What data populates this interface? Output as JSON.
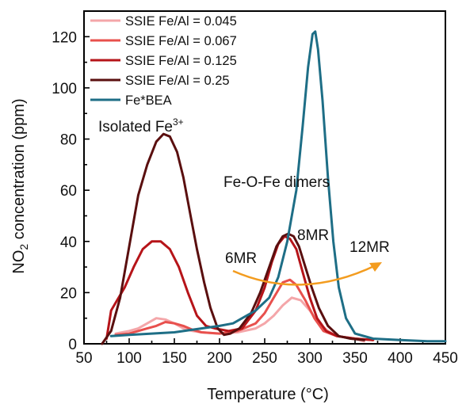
{
  "chart_data": {
    "type": "line",
    "title": "",
    "xlabel": "Temperature (°C)",
    "ylabel_main": "NO",
    "ylabel_sub": "2",
    "ylabel_rest": " concentration (ppm)",
    "xlim": [
      50,
      450
    ],
    "ylim": [
      0,
      130
    ],
    "x_ticks": [
      50,
      100,
      150,
      200,
      250,
      300,
      350,
      400,
      450
    ],
    "y_ticks": [
      0,
      20,
      40,
      60,
      80,
      100,
      120
    ],
    "grid": false,
    "legend_position": "top-left",
    "series": [
      {
        "name": "SSIE Fe/Al = 0.045",
        "color": "#f4a6a9",
        "points": [
          [
            85,
            4
          ],
          [
            100,
            5
          ],
          [
            110,
            6
          ],
          [
            120,
            8
          ],
          [
            130,
            10
          ],
          [
            140,
            9.5
          ],
          [
            150,
            8
          ],
          [
            160,
            6
          ],
          [
            170,
            5
          ],
          [
            180,
            4.5
          ],
          [
            200,
            4
          ],
          [
            220,
            4.5
          ],
          [
            240,
            6
          ],
          [
            250,
            8
          ],
          [
            260,
            11
          ],
          [
            270,
            15
          ],
          [
            280,
            18
          ],
          [
            290,
            17
          ],
          [
            300,
            13
          ],
          [
            310,
            8
          ],
          [
            320,
            5
          ],
          [
            330,
            3
          ],
          [
            350,
            2
          ],
          [
            360,
            1
          ]
        ]
      },
      {
        "name": "SSIE Fe/Al = 0.067",
        "color": "#e8504d",
        "points": [
          [
            85,
            3.5
          ],
          [
            100,
            4
          ],
          [
            110,
            5
          ],
          [
            120,
            6
          ],
          [
            130,
            7
          ],
          [
            140,
            8.5
          ],
          [
            150,
            8
          ],
          [
            160,
            7
          ],
          [
            170,
            5.5
          ],
          [
            180,
            4.5
          ],
          [
            200,
            4
          ],
          [
            220,
            5
          ],
          [
            240,
            8
          ],
          [
            250,
            12
          ],
          [
            260,
            18
          ],
          [
            270,
            24
          ],
          [
            278,
            25
          ],
          [
            285,
            23
          ],
          [
            295,
            17
          ],
          [
            305,
            10
          ],
          [
            315,
            5
          ],
          [
            330,
            3
          ],
          [
            350,
            2
          ],
          [
            370,
            1.5
          ]
        ]
      },
      {
        "name": "SSIE Fe/Al = 0.125",
        "color": "#b61419",
        "points": [
          [
            75,
            2
          ],
          [
            80,
            13
          ],
          [
            85,
            16
          ],
          [
            95,
            22
          ],
          [
            105,
            30
          ],
          [
            115,
            37
          ],
          [
            125,
            40
          ],
          [
            135,
            40
          ],
          [
            145,
            37
          ],
          [
            155,
            30
          ],
          [
            165,
            20
          ],
          [
            175,
            11
          ],
          [
            185,
            7
          ],
          [
            195,
            6
          ],
          [
            210,
            5
          ],
          [
            225,
            6
          ],
          [
            240,
            13
          ],
          [
            250,
            22
          ],
          [
            258,
            32
          ],
          [
            265,
            39
          ],
          [
            272,
            42
          ],
          [
            278,
            41
          ],
          [
            285,
            37
          ],
          [
            292,
            28
          ],
          [
            300,
            18
          ],
          [
            308,
            10
          ],
          [
            318,
            5
          ],
          [
            330,
            3
          ],
          [
            350,
            2
          ],
          [
            370,
            1.5
          ]
        ]
      },
      {
        "name": "SSIE Fe/Al = 0.25",
        "color": "#5a0f0f",
        "points": [
          [
            70,
            0
          ],
          [
            80,
            5
          ],
          [
            90,
            18
          ],
          [
            100,
            38
          ],
          [
            110,
            58
          ],
          [
            120,
            70
          ],
          [
            130,
            79
          ],
          [
            138,
            82
          ],
          [
            145,
            81
          ],
          [
            153,
            75
          ],
          [
            160,
            65
          ],
          [
            168,
            50
          ],
          [
            175,
            37
          ],
          [
            183,
            24
          ],
          [
            190,
            14
          ],
          [
            198,
            6
          ],
          [
            205,
            3.5
          ],
          [
            212,
            4
          ],
          [
            222,
            6
          ],
          [
            235,
            12
          ],
          [
            245,
            20
          ],
          [
            255,
            30
          ],
          [
            263,
            38
          ],
          [
            270,
            42
          ],
          [
            276,
            43
          ],
          [
            282,
            42
          ],
          [
            288,
            38
          ],
          [
            295,
            30
          ],
          [
            302,
            22
          ],
          [
            310,
            14
          ],
          [
            320,
            7
          ],
          [
            332,
            3
          ],
          [
            345,
            2
          ],
          [
            360,
            1.5
          ]
        ]
      },
      {
        "name": "Fe*BEA",
        "color": "#1e6e86",
        "points": [
          [
            80,
            3
          ],
          [
            100,
            3.5
          ],
          [
            150,
            4.5
          ],
          [
            180,
            6
          ],
          [
            200,
            7
          ],
          [
            215,
            8
          ],
          [
            225,
            10
          ],
          [
            240,
            13
          ],
          [
            255,
            18
          ],
          [
            265,
            26
          ],
          [
            275,
            40
          ],
          [
            285,
            60
          ],
          [
            292,
            85
          ],
          [
            298,
            108
          ],
          [
            303,
            121
          ],
          [
            306,
            122
          ],
          [
            309,
            115
          ],
          [
            314,
            95
          ],
          [
            320,
            65
          ],
          [
            326,
            40
          ],
          [
            332,
            22
          ],
          [
            340,
            10
          ],
          [
            350,
            4
          ],
          [
            370,
            2
          ],
          [
            400,
            1.5
          ],
          [
            430,
            1
          ],
          [
            450,
            1
          ]
        ]
      }
    ],
    "annotations": {
      "isolated_text": "Isolated Fe",
      "isolated_sup": "3+",
      "dimers": "Fe-O-Fe dimers",
      "six_mr": "6MR",
      "eight_mr": "8MR",
      "twelve_mr": "12MR",
      "arrow_color": "#f39c1f"
    }
  }
}
